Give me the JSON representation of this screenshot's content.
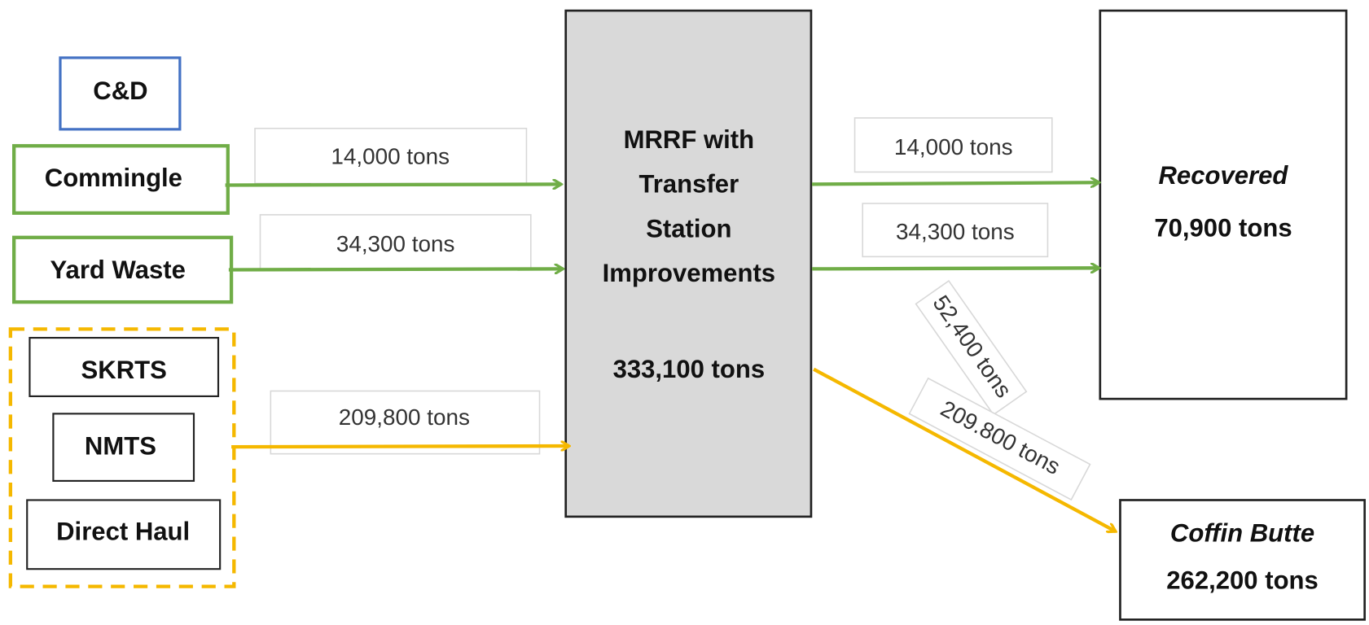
{
  "sources": {
    "cd": "C&D",
    "commingle": "Commingle",
    "yard_waste": "Yard Waste",
    "skrts": "SKRTS",
    "nmts": "NMTS",
    "direct_haul": "Direct Haul"
  },
  "facility": {
    "title_lines": [
      "MRRF with",
      "Transfer",
      "Station",
      "Improvements"
    ],
    "total": "333,100 tons"
  },
  "destinations": {
    "recovered": {
      "label": "Recovered",
      "total": "70,900 tons"
    },
    "coffin_butte": {
      "label": "Coffin Butte",
      "total": "262,200 tons"
    }
  },
  "flows": {
    "commingle_in": "14,000 tons",
    "yard_waste_in": "34,300 tons",
    "transfer_in": "209,800 tons",
    "commingle_out": "14,000 tons",
    "yard_waste_out": "34,300 tons",
    "residual_out": "52,400 tons",
    "transfer_out": "209.800 tons"
  }
}
